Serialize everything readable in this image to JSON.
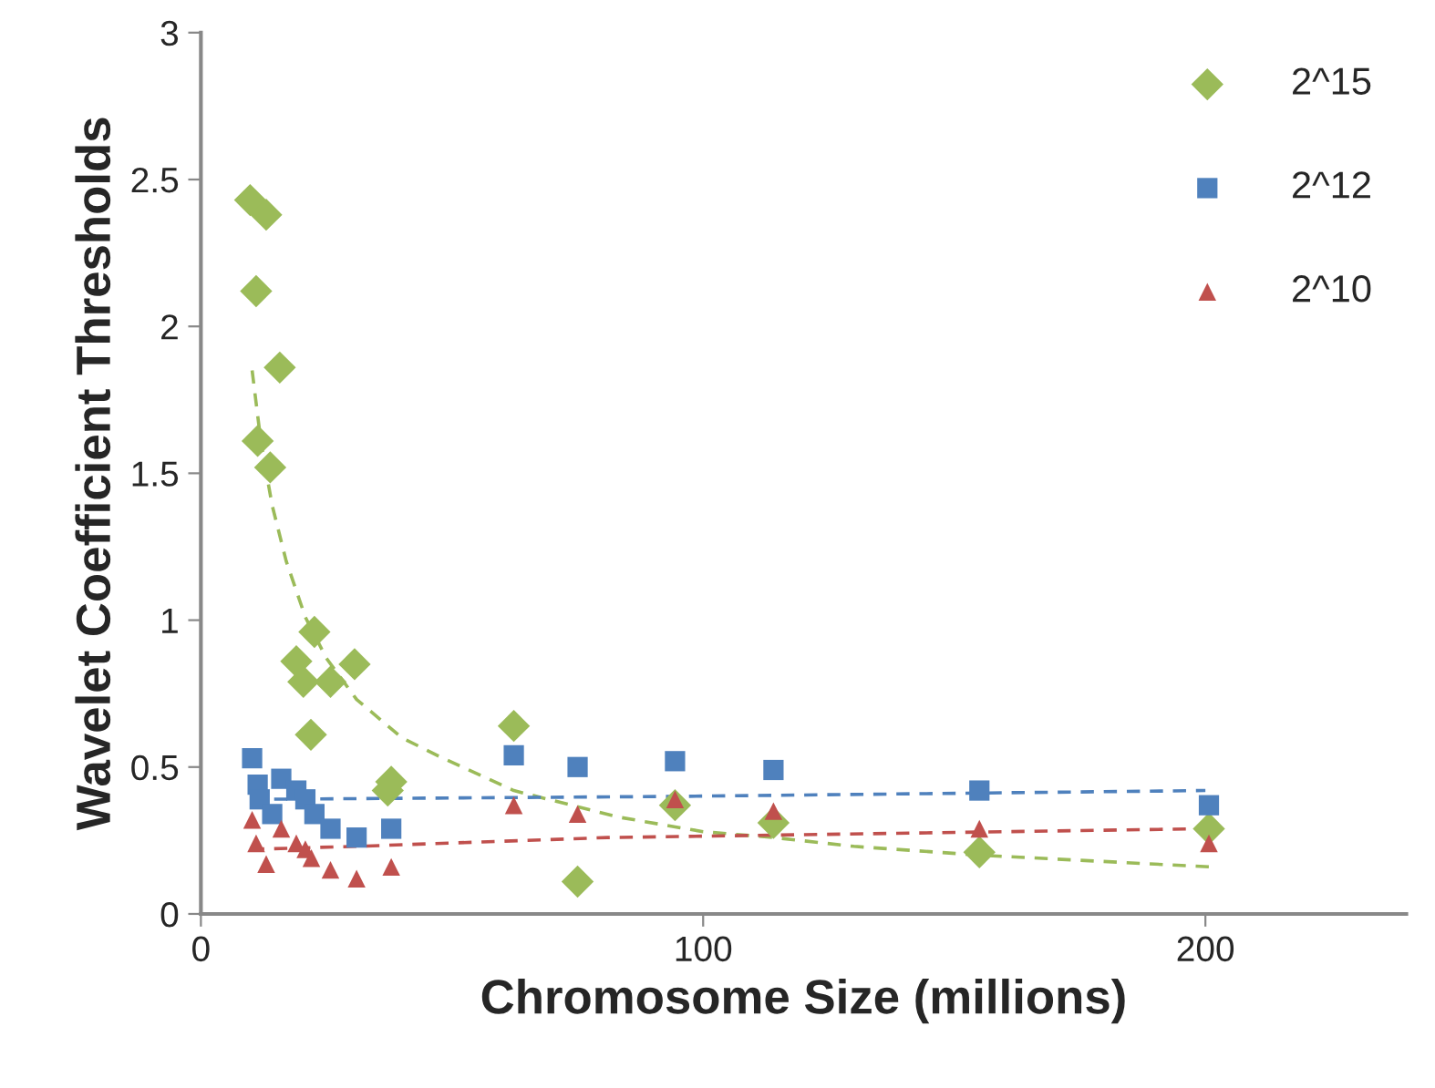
{
  "chart_data": {
    "type": "scatter",
    "xlabel": "Chromosome Size (millions)",
    "ylabel": "Wavelet Coefficient Thresholds",
    "xlim": [
      0,
      240
    ],
    "xticks": [
      0,
      100,
      200
    ],
    "ylim": [
      0,
      3
    ],
    "yticks": [
      0,
      0.5,
      1,
      1.5,
      2,
      2.5,
      3
    ],
    "grid": false,
    "legend": "top right",
    "series": [
      {
        "name": "2^15",
        "color": "#9bbb59",
        "marker": "diamond",
        "x": [
          9.8,
          13,
          11,
          15.7,
          11.3,
          13.8,
          22.6,
          19,
          20.4,
          25.8,
          30.6,
          21.9,
          37.9,
          37.2,
          62.3,
          75,
          94.4,
          114,
          155,
          200.7
        ],
        "values": [
          2.43,
          2.38,
          2.12,
          1.86,
          1.61,
          1.52,
          0.96,
          0.86,
          0.79,
          0.79,
          0.85,
          0.61,
          0.45,
          0.42,
          0.64,
          0.11,
          0.37,
          0.31,
          0.21,
          0.29
        ]
      },
      {
        "name": "2^12",
        "color": "#4f81bd",
        "marker": "square",
        "x": [
          10.2,
          11.3,
          11.7,
          16,
          19,
          20.8,
          14.2,
          22.6,
          25.8,
          31,
          37.9,
          62.3,
          75,
          94.4,
          114,
          155,
          200.7
        ],
        "values": [
          0.53,
          0.44,
          0.39,
          0.46,
          0.42,
          0.39,
          0.34,
          0.34,
          0.29,
          0.26,
          0.29,
          0.54,
          0.5,
          0.52,
          0.49,
          0.42,
          0.37
        ]
      },
      {
        "name": "2^10",
        "color": "#c0504d",
        "marker": "triangle",
        "x": [
          10.2,
          11,
          13,
          16,
          19,
          20.8,
          22,
          25.8,
          31,
          37.9,
          62.3,
          75,
          94.4,
          114,
          155,
          200.7
        ],
        "values": [
          0.32,
          0.24,
          0.17,
          0.29,
          0.24,
          0.22,
          0.19,
          0.15,
          0.12,
          0.16,
          0.37,
          0.34,
          0.39,
          0.35,
          0.29,
          0.24
        ]
      },
      {
        "type": "line",
        "color": "#9bbb59",
        "line_style": "dashed",
        "x": [
          10.2,
          12,
          14.2,
          17,
          20.8,
          25,
          31,
          40,
          47,
          62.3,
          83,
          100,
          114,
          130,
          155,
          201
        ],
        "values": [
          1.85,
          1.6,
          1.39,
          1.2,
          1.01,
          0.87,
          0.73,
          0.6,
          0.54,
          0.42,
          0.33,
          0.28,
          0.26,
          0.23,
          0.2,
          0.16
        ]
      },
      {
        "type": "line",
        "color": "#4f81bd",
        "line_style": "dashed",
        "x": [
          10,
          94.4,
          200
        ],
        "values": [
          0.39,
          0.4,
          0.42
        ]
      },
      {
        "type": "line",
        "color": "#c0504d",
        "line_style": "dashed",
        "x": [
          10,
          31,
          81,
          200
        ],
        "values": [
          0.22,
          0.23,
          0.26,
          0.29
        ]
      }
    ]
  }
}
